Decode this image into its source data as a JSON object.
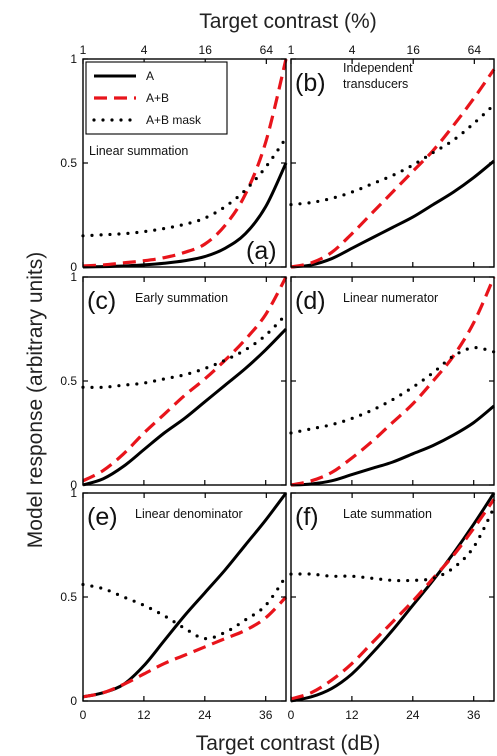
{
  "figure": {
    "top_axis_title": "Target contrast (%)",
    "bottom_axis_title": "Target contrast (dB)",
    "y_axis_title": "Model response (arbitrary units)",
    "top_ticks": [
      "1",
      "4",
      "16",
      "64"
    ],
    "bottom_ticks": [
      "0",
      "12",
      "24",
      "36"
    ],
    "y_ticks": [
      "0",
      "0.5",
      "1"
    ]
  },
  "legend": {
    "placement": "top-left of panel (a)",
    "entries": [
      {
        "label": "A",
        "style": "solid",
        "color": "#000000"
      },
      {
        "label": "A+B",
        "style": "dashed",
        "color": "#e8141b"
      },
      {
        "label": "A+B mask",
        "style": "dotted",
        "color": "#000000"
      }
    ]
  },
  "chart_data": [
    {
      "type": "line",
      "panel": "(a)",
      "title": "Linear summation",
      "xlim": [
        0,
        40
      ],
      "ylim": [
        0,
        1
      ],
      "x": [
        0,
        4,
        8,
        12,
        16,
        20,
        24,
        28,
        32,
        36,
        40
      ],
      "series": [
        {
          "name": "A",
          "values": [
            0.0,
            0.002,
            0.005,
            0.01,
            0.018,
            0.03,
            0.05,
            0.09,
            0.16,
            0.29,
            0.5
          ]
        },
        {
          "name": "A+B",
          "values": [
            0.005,
            0.01,
            0.02,
            0.03,
            0.045,
            0.07,
            0.11,
            0.2,
            0.35,
            0.6,
            1.0
          ]
        },
        {
          "name": "A+B mask",
          "values": [
            0.15,
            0.155,
            0.16,
            0.17,
            0.185,
            0.205,
            0.235,
            0.29,
            0.37,
            0.48,
            0.62
          ]
        }
      ]
    },
    {
      "type": "line",
      "panel": "(b)",
      "title": "Independent transducers",
      "xlim": [
        0,
        40
      ],
      "ylim": [
        0,
        1
      ],
      "x": [
        0,
        4,
        8,
        12,
        16,
        20,
        24,
        28,
        32,
        36,
        40
      ],
      "series": [
        {
          "name": "A",
          "values": [
            0.0,
            0.01,
            0.04,
            0.09,
            0.14,
            0.19,
            0.24,
            0.3,
            0.36,
            0.43,
            0.51
          ]
        },
        {
          "name": "A+B",
          "values": [
            0.0,
            0.02,
            0.07,
            0.16,
            0.26,
            0.36,
            0.46,
            0.56,
            0.68,
            0.81,
            0.95
          ]
        },
        {
          "name": "A+B mask",
          "values": [
            0.3,
            0.31,
            0.33,
            0.36,
            0.4,
            0.44,
            0.49,
            0.55,
            0.61,
            0.69,
            0.78
          ]
        }
      ]
    },
    {
      "type": "line",
      "panel": "(c)",
      "title": "Early summation",
      "xlim": [
        0,
        40
      ],
      "ylim": [
        0,
        1
      ],
      "x": [
        0,
        4,
        8,
        12,
        16,
        20,
        24,
        28,
        32,
        36,
        40
      ],
      "series": [
        {
          "name": "A",
          "values": [
            0.0,
            0.03,
            0.09,
            0.17,
            0.25,
            0.32,
            0.4,
            0.48,
            0.56,
            0.65,
            0.75
          ]
        },
        {
          "name": "A+B",
          "values": [
            0.02,
            0.07,
            0.15,
            0.25,
            0.34,
            0.43,
            0.51,
            0.6,
            0.7,
            0.82,
            1.0
          ]
        },
        {
          "name": "A+B mask",
          "values": [
            0.47,
            0.47,
            0.48,
            0.49,
            0.51,
            0.53,
            0.56,
            0.6,
            0.65,
            0.72,
            0.82
          ]
        }
      ]
    },
    {
      "type": "line",
      "panel": "(d)",
      "title": "Linear numerator",
      "xlim": [
        0,
        40
      ],
      "ylim": [
        0,
        1
      ],
      "x": [
        0,
        4,
        8,
        12,
        16,
        20,
        24,
        28,
        32,
        36,
        40
      ],
      "series": [
        {
          "name": "A",
          "values": [
            0.0,
            0.005,
            0.02,
            0.05,
            0.08,
            0.11,
            0.15,
            0.19,
            0.24,
            0.3,
            0.38
          ]
        },
        {
          "name": "A+B",
          "values": [
            0.0,
            0.02,
            0.06,
            0.13,
            0.21,
            0.3,
            0.39,
            0.5,
            0.62,
            0.78,
            1.0
          ]
        },
        {
          "name": "A+B mask",
          "values": [
            0.25,
            0.27,
            0.29,
            0.32,
            0.36,
            0.41,
            0.47,
            0.54,
            0.62,
            0.66,
            0.64
          ]
        }
      ]
    },
    {
      "type": "line",
      "panel": "(e)",
      "title": "Linear denominator",
      "xlim": [
        0,
        40
      ],
      "ylim": [
        0,
        1
      ],
      "x": [
        0,
        4,
        8,
        12,
        16,
        20,
        24,
        28,
        32,
        36,
        40
      ],
      "series": [
        {
          "name": "A",
          "values": [
            0.02,
            0.04,
            0.08,
            0.17,
            0.29,
            0.41,
            0.52,
            0.63,
            0.75,
            0.87,
            1.0
          ]
        },
        {
          "name": "A+B",
          "values": [
            0.02,
            0.04,
            0.08,
            0.13,
            0.18,
            0.22,
            0.26,
            0.3,
            0.34,
            0.4,
            0.5
          ]
        },
        {
          "name": "A+B mask",
          "values": [
            0.56,
            0.54,
            0.5,
            0.46,
            0.41,
            0.35,
            0.3,
            0.33,
            0.39,
            0.46,
            0.6
          ]
        }
      ]
    },
    {
      "type": "line",
      "panel": "(f)",
      "title": "Late summation",
      "xlim": [
        0,
        40
      ],
      "ylim": [
        0,
        1
      ],
      "x": [
        0,
        4,
        8,
        12,
        16,
        20,
        24,
        28,
        32,
        36,
        40
      ],
      "series": [
        {
          "name": "A",
          "values": [
            0.0,
            0.02,
            0.06,
            0.13,
            0.23,
            0.34,
            0.46,
            0.58,
            0.71,
            0.85,
            1.0
          ]
        },
        {
          "name": "A+B",
          "values": [
            0.01,
            0.04,
            0.1,
            0.18,
            0.28,
            0.38,
            0.48,
            0.59,
            0.7,
            0.83,
            0.97
          ]
        },
        {
          "name": "A+B mask",
          "values": [
            0.61,
            0.61,
            0.6,
            0.6,
            0.59,
            0.58,
            0.58,
            0.59,
            0.64,
            0.74,
            0.93
          ]
        }
      ]
    }
  ]
}
